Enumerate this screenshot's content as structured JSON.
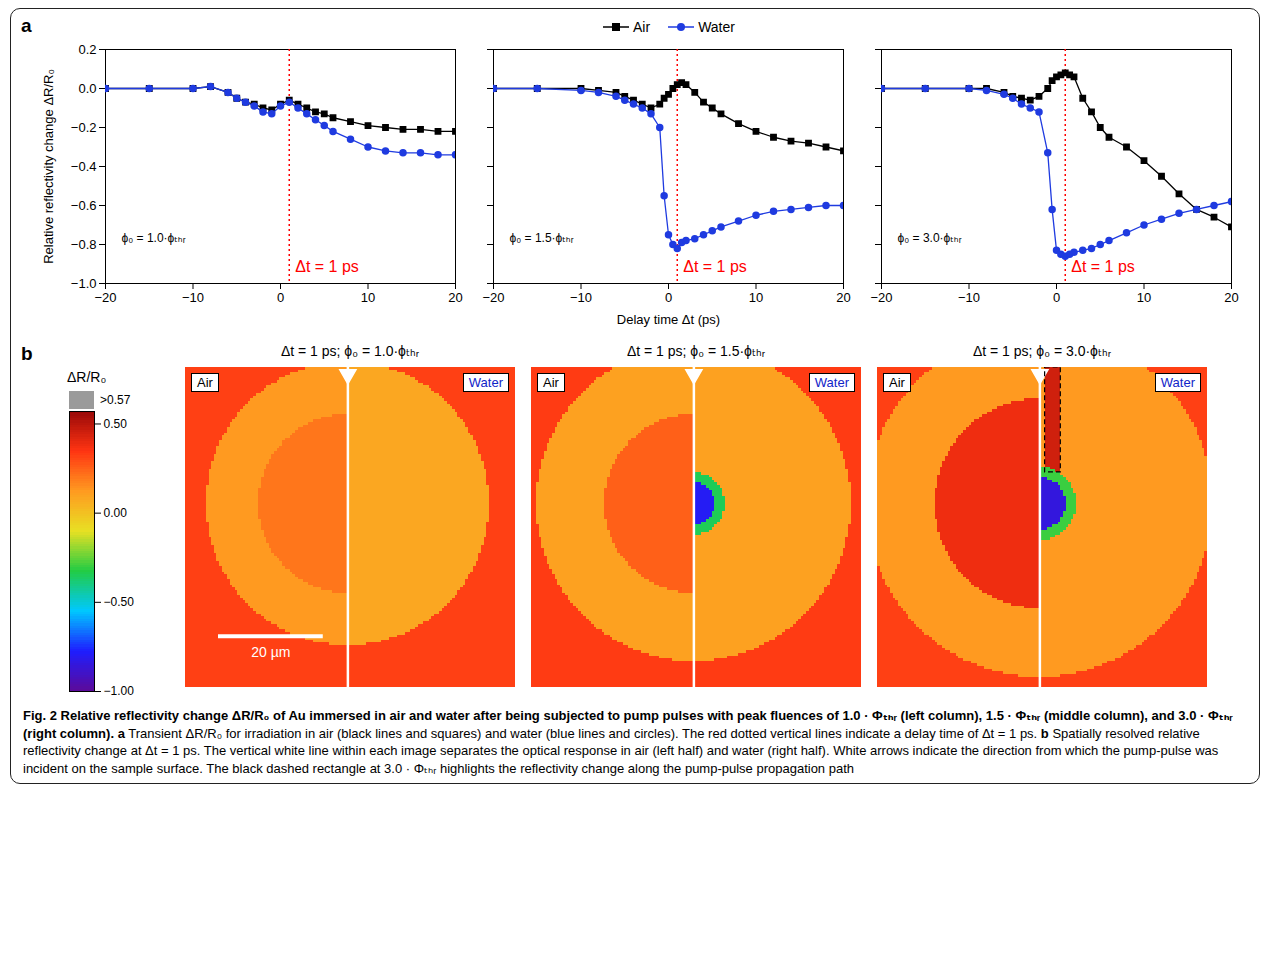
{
  "panel_labels": [
    "a",
    "b"
  ],
  "chart_data": [
    {
      "type": "line",
      "y_label": "Relative reflectivity change ΔR/R₀",
      "x": [
        -20,
        -15,
        -10,
        -8,
        -6,
        -5,
        -4,
        -3,
        -2,
        -1,
        0,
        1,
        2,
        3,
        4,
        5,
        6,
        8,
        10,
        12,
        14,
        16,
        18,
        20
      ],
      "series": [
        {
          "name": "Air",
          "color": "#000000",
          "marker": "square",
          "values": [
            0,
            0,
            0,
            0.01,
            -0.02,
            -0.05,
            -0.07,
            -0.08,
            -0.1,
            -0.11,
            -0.08,
            -0.06,
            -0.08,
            -0.1,
            -0.12,
            -0.13,
            -0.15,
            -0.17,
            -0.19,
            -0.2,
            -0.21,
            -0.21,
            -0.22,
            -0.22
          ]
        },
        {
          "name": "Water",
          "color": "#1f3be0",
          "marker": "circle",
          "values": [
            0,
            0,
            0,
            0.01,
            -0.02,
            -0.05,
            -0.07,
            -0.09,
            -0.12,
            -0.13,
            -0.09,
            -0.07,
            -0.1,
            -0.13,
            -0.16,
            -0.19,
            -0.22,
            -0.26,
            -0.3,
            -0.32,
            -0.33,
            -0.33,
            -0.34,
            -0.34
          ]
        }
      ],
      "xlim": [
        -20,
        20
      ],
      "xticks": [
        -20,
        -10,
        0,
        10,
        20
      ],
      "ylim": [
        -1,
        0.2
      ],
      "yticks": [
        {
          "value": -1,
          "label": "−1.0"
        },
        {
          "value": -0.8,
          "label": "−0.8"
        },
        {
          "value": -0.6,
          "label": "−0.6"
        },
        {
          "value": -0.4,
          "label": "−0.4"
        },
        {
          "value": -0.2,
          "label": "−0.2"
        },
        {
          "value": 0,
          "label": "0.0"
        },
        0.2
      ],
      "annotations": [
        {
          "text": "ϕ₀ = 1.0·ϕₜₕᵣ"
        },
        {
          "text": "Δt = 1 ps",
          "x": 1,
          "color": "#ff0000",
          "line_style": "dotted"
        }
      ]
    },
    {
      "type": "line",
      "x_label": "Delay time Δt (ps)",
      "legend": "top",
      "tick_labels": "x",
      "x": [
        -20,
        -15,
        -10,
        -8,
        -6,
        -5,
        -4,
        -3,
        -2,
        -1,
        -0.5,
        0,
        0.5,
        1,
        1.5,
        2,
        3,
        4,
        5,
        6,
        8,
        10,
        12,
        14,
        16,
        18,
        20
      ],
      "series": [
        {
          "name": "Air",
          "color": "#000000",
          "marker": "square",
          "values": [
            0,
            0,
            0,
            -0.01,
            -0.02,
            -0.04,
            -0.06,
            -0.08,
            -0.1,
            -0.08,
            -0.05,
            -0.03,
            0.0,
            0.02,
            0.03,
            0.02,
            -0.02,
            -0.07,
            -0.1,
            -0.13,
            -0.18,
            -0.22,
            -0.25,
            -0.27,
            -0.28,
            -0.3,
            -0.32
          ]
        },
        {
          "name": "Water",
          "color": "#1f3be0",
          "marker": "circle",
          "values": [
            0,
            0,
            -0.01,
            -0.02,
            -0.04,
            -0.06,
            -0.08,
            -0.1,
            -0.13,
            -0.2,
            -0.55,
            -0.75,
            -0.8,
            -0.82,
            -0.79,
            -0.78,
            -0.77,
            -0.75,
            -0.73,
            -0.71,
            -0.68,
            -0.65,
            -0.63,
            -0.62,
            -0.61,
            -0.6,
            -0.6
          ]
        }
      ],
      "xlim": [
        -20,
        20
      ],
      "xticks": [
        -20,
        -10,
        0,
        10,
        20
      ],
      "ylim": [
        -1,
        0.2
      ],
      "yticks": [
        {
          "value": -1,
          "label": "−1.0"
        },
        {
          "value": -0.8,
          "label": "−0.8"
        },
        {
          "value": -0.6,
          "label": "−0.6"
        },
        {
          "value": -0.4,
          "label": "−0.4"
        },
        {
          "value": -0.2,
          "label": "−0.2"
        },
        {
          "value": 0,
          "label": "0.0"
        },
        0.2
      ],
      "annotations": [
        {
          "text": "ϕ₀ = 1.5·ϕₜₕᵣ"
        },
        {
          "text": "Δt = 1 ps",
          "x": 1,
          "color": "#ff0000",
          "line_style": "dotted"
        }
      ]
    },
    {
      "type": "line",
      "tick_labels": "x",
      "x": [
        -20,
        -15,
        -10,
        -8,
        -6,
        -5,
        -4,
        -3,
        -2,
        -1,
        -0.5,
        0,
        0.5,
        1,
        1.5,
        2,
        3,
        4,
        5,
        6,
        8,
        10,
        12,
        14,
        16,
        18,
        20
      ],
      "series": [
        {
          "name": "Air",
          "color": "#000000",
          "marker": "square",
          "values": [
            0,
            0,
            0,
            0,
            -0.02,
            -0.04,
            -0.05,
            -0.06,
            -0.04,
            0.0,
            0.04,
            0.06,
            0.07,
            0.08,
            0.07,
            0.06,
            -0.05,
            -0.12,
            -0.2,
            -0.25,
            -0.3,
            -0.37,
            -0.45,
            -0.54,
            -0.62,
            -0.66,
            -0.71
          ]
        },
        {
          "name": "Water",
          "color": "#1f3be0",
          "marker": "circle",
          "values": [
            0,
            0,
            0,
            -0.01,
            -0.03,
            -0.05,
            -0.08,
            -0.1,
            -0.12,
            -0.33,
            -0.62,
            -0.83,
            -0.85,
            -0.86,
            -0.85,
            -0.84,
            -0.83,
            -0.82,
            -0.8,
            -0.78,
            -0.74,
            -0.7,
            -0.67,
            -0.64,
            -0.62,
            -0.6,
            -0.58
          ]
        }
      ],
      "xlim": [
        -20,
        20
      ],
      "xticks": [
        -20,
        -10,
        0,
        10,
        20
      ],
      "ylim": [
        -1,
        0.2
      ],
      "yticks": [
        {
          "value": -1,
          "label": "−1.0"
        },
        {
          "value": -0.8,
          "label": "−0.8"
        },
        {
          "value": -0.6,
          "label": "−0.6"
        },
        {
          "value": -0.4,
          "label": "−0.4"
        },
        {
          "value": -0.2,
          "label": "−0.2"
        },
        {
          "value": 0,
          "label": "0.0"
        },
        0.2
      ],
      "annotations": [
        {
          "text": "ϕ₀ = 3.0·ϕₜₕᵣ"
        },
        {
          "text": "Δt = 1 ps",
          "x": 1,
          "color": "#ff0000",
          "line_style": "dotted"
        }
      ]
    }
  ],
  "image_panels": {
    "colorbar": {
      "title": "ΔR/R₀",
      "range": [
        -1,
        0.57
      ],
      "ticks": [
        {
          "value": 0.57,
          "label": ">0.57"
        },
        {
          "value": 0.5,
          "label": "0.50"
        },
        {
          "value": 0,
          "label": "0.00"
        },
        {
          "value": -0.5,
          "label": "−0.50"
        },
        {
          "value": -1,
          "label": "−1.00"
        }
      ]
    },
    "panels": [
      {
        "title": "Δt = 1 ps; ϕ₀ = 1.0·ϕₜₕᵣ",
        "left_label": "Air",
        "right_label": "Water",
        "xlim": [
          0,
          63
        ],
        "ylim": [
          0,
          61
        ],
        "interface_x": 31,
        "background": 0.32,
        "regions": [
          {
            "shape": "disc",
            "center": [
              31,
              26
            ],
            "radius": 27,
            "value": 0.12
          },
          {
            "shape": "disc",
            "side": "air",
            "center": [
              31,
              26
            ],
            "radius": 17,
            "value": 0.2
          },
          {
            "shape": "disc",
            "side": "water",
            "center": [
              31,
              26
            ],
            "radius": 27,
            "value": 0.08
          }
        ],
        "scale_bar": {
          "length": 20,
          "label": "20 µm"
        }
      },
      {
        "title": "Δt = 1 ps; ϕ₀ = 1.5·ϕₜₕᵣ",
        "left_label": "Air",
        "right_label": "Water",
        "xlim": [
          0,
          63
        ],
        "ylim": [
          0,
          61
        ],
        "interface_x": 31,
        "background": 0.33,
        "regions": [
          {
            "shape": "disc",
            "center": [
              31,
              26
            ],
            "radius": 30,
            "value": 0.1
          },
          {
            "shape": "disc",
            "side": "air",
            "center": [
              31,
              26
            ],
            "radius": 17,
            "value": 0.25
          },
          {
            "shape": "disc",
            "side": "water",
            "center": [
              31,
              26
            ],
            "radius": 6,
            "value": -0.35
          },
          {
            "shape": "disc",
            "side": "water",
            "center": [
              31,
              26
            ],
            "radius": 4,
            "value": -0.8
          }
        ]
      },
      {
        "title": "Δt = 1 ps; ϕ₀ = 3.0·ϕₜₕᵣ",
        "left_label": "Air",
        "right_label": "Water",
        "xlim": [
          0,
          63
        ],
        "ylim": [
          0,
          61
        ],
        "interface_x": 31,
        "background": 0.32,
        "regions": [
          {
            "shape": "disc",
            "center": [
              31,
              26
            ],
            "radius": 33,
            "value": 0.12
          },
          {
            "shape": "disc",
            "side": "air",
            "center": [
              31,
              26
            ],
            "radius": 20,
            "value": 0.38
          },
          {
            "shape": "rect",
            "side": "water",
            "x": [
              32,
              35
            ],
            "y": [
              0,
              20
            ],
            "value": 0.45
          },
          {
            "shape": "disc",
            "side": "water",
            "center": [
              31,
              26
            ],
            "radius": 7,
            "value": -0.3
          },
          {
            "shape": "disc",
            "side": "water",
            "center": [
              31,
              26
            ],
            "radius": 5,
            "value": -0.85
          }
        ],
        "highlight": {
          "x": [
            32,
            35
          ],
          "y": [
            0,
            20
          ],
          "line_style": "dashed"
        }
      }
    ]
  },
  "caption": [
    {
      "text": "Fig. 2 Relative reflectivity change ΔR/R₀ of Au immersed in air and water after being subjected to pump pulses with peak fluences of 1.0 · Φₜₕᵣ (left column), 1.5 · Φₜₕᵣ (middle column), and 3.0 · Φₜₕᵣ (right column).",
      "bold": true
    },
    {
      "text": " "
    },
    {
      "text": "a",
      "bold": true
    },
    {
      "text": " Transient ΔR/R₀ for irradiation in air (black lines and squares) and water (blue lines and circles). The red dotted vertical lines indicate a delay time of Δt = 1 ps. "
    },
    {
      "text": "b",
      "bold": true
    },
    {
      "text": " Spatially resolved relative reflectivity change at Δt = 1 ps. The vertical white line within each image separates the optical response in air (left half) and water (right half). White arrows indicate the direction from which the pump-pulse was incident on the sample surface. The black dashed rectangle at 3.0 · Φₜₕᵣ highlights the reflectivity change along the pump-pulse propagation path"
    }
  ]
}
